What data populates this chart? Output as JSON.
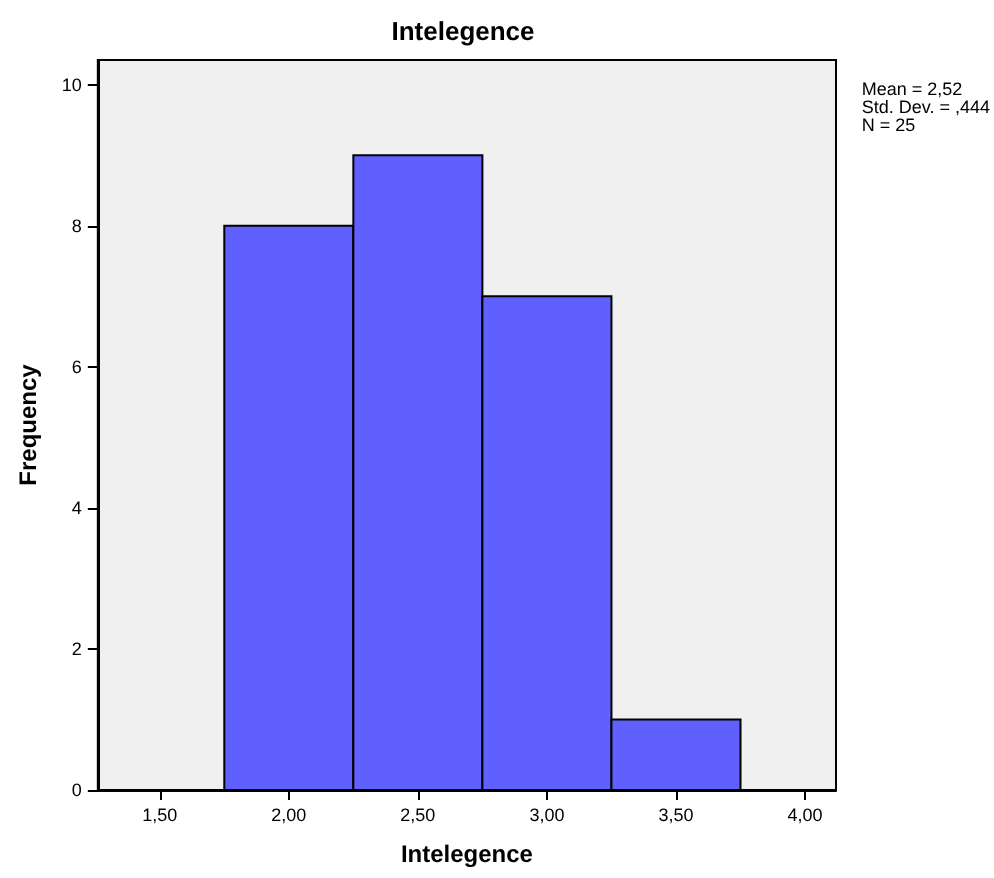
{
  "chart_data": {
    "type": "histogram",
    "title": "Intelegence",
    "xlabel": "Intelegence",
    "ylabel": "Frequency",
    "bins": [
      1.75,
      2.25,
      2.75,
      3.25,
      3.75
    ],
    "values": [
      8,
      9,
      7,
      1
    ],
    "color": "#6060ff",
    "xlim": [
      1.26,
      4.12
    ],
    "xticks": [
      {
        "value": 1.5,
        "label": "1,50"
      },
      {
        "value": 2,
        "label": "2,00"
      },
      {
        "value": 2.5,
        "label": "2,50"
      },
      {
        "value": 3,
        "label": "3,00"
      },
      {
        "value": 3.5,
        "label": "3,50"
      },
      {
        "value": 4,
        "label": "4,00"
      }
    ],
    "ylim": [
      0,
      10.35
    ],
    "yticks": [
      0,
      2,
      4,
      6,
      8,
      10
    ],
    "annotations": [
      "Mean = 2,52\nStd. Dev. = ,444\nN = 25"
    ],
    "grid": false,
    "legend": false
  }
}
